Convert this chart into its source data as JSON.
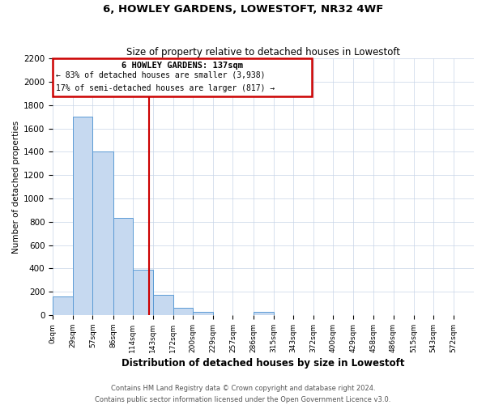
{
  "title": "6, HOWLEY GARDENS, LOWESTOFT, NR32 4WF",
  "subtitle": "Size of property relative to detached houses in Lowestoft",
  "xlabel": "Distribution of detached houses by size in Lowestoft",
  "ylabel": "Number of detached properties",
  "bar_color": "#c6d9f0",
  "bar_edge_color": "#5b9bd5",
  "bin_labels": [
    "0sqm",
    "29sqm",
    "57sqm",
    "86sqm",
    "114sqm",
    "143sqm",
    "172sqm",
    "200sqm",
    "229sqm",
    "257sqm",
    "286sqm",
    "315sqm",
    "343sqm",
    "372sqm",
    "400sqm",
    "429sqm",
    "458sqm",
    "486sqm",
    "515sqm",
    "543sqm",
    "572sqm"
  ],
  "bin_edges": [
    0,
    29,
    57,
    86,
    114,
    143,
    172,
    200,
    229,
    257,
    286,
    315,
    343,
    372,
    400,
    429,
    458,
    486,
    515,
    543,
    572
  ],
  "bar_heights": [
    160,
    1700,
    1400,
    830,
    390,
    170,
    65,
    30,
    0,
    0,
    25,
    0,
    0,
    0,
    0,
    0,
    0,
    0,
    0,
    0
  ],
  "ylim": [
    0,
    2200
  ],
  "yticks": [
    0,
    200,
    400,
    600,
    800,
    1000,
    1200,
    1400,
    1600,
    1800,
    2000,
    2200
  ],
  "property_line_x": 137,
  "property_line_color": "#cc0000",
  "annotation_title": "6 HOWLEY GARDENS: 137sqm",
  "annotation_line1": "← 83% of detached houses are smaller (3,938)",
  "annotation_line2": "17% of semi-detached houses are larger (817) →",
  "annotation_box_color": "#cc0000",
  "footer_line1": "Contains HM Land Registry data © Crown copyright and database right 2024.",
  "footer_line2": "Contains public sector information licensed under the Open Government Licence v3.0.",
  "background_color": "#ffffff",
  "grid_color": "#c8d4e8"
}
